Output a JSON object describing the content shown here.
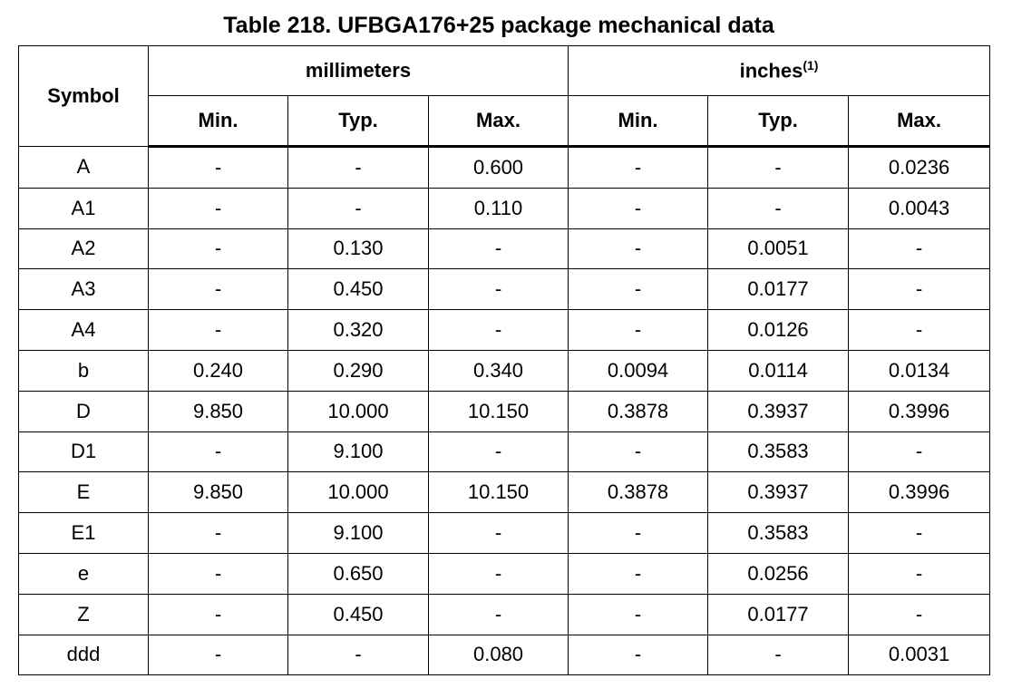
{
  "title": "Table 218. UFBGA176+25 package mechanical data",
  "table": {
    "header": {
      "symbol": "Symbol",
      "groups": [
        {
          "label": "millimeters"
        },
        {
          "label": "inches",
          "note": "(1)"
        }
      ],
      "columns": [
        "Min.",
        "Typ.",
        "Max.",
        "Min.",
        "Typ.",
        "Max."
      ]
    },
    "rows": [
      [
        "A",
        "-",
        "-",
        "0.600",
        "-",
        "-",
        "0.0236"
      ],
      [
        "A1",
        "-",
        "-",
        "0.110",
        "-",
        "-",
        "0.0043"
      ],
      [
        "A2",
        "-",
        "0.130",
        "-",
        "-",
        "0.0051",
        "-"
      ],
      [
        "A3",
        "-",
        "0.450",
        "-",
        "-",
        "0.0177",
        "-"
      ],
      [
        "A4",
        "-",
        "0.320",
        "-",
        "-",
        "0.0126",
        "-"
      ],
      [
        "b",
        "0.240",
        "0.290",
        "0.340",
        "0.0094",
        "0.0114",
        "0.0134"
      ],
      [
        "D",
        "9.850",
        "10.000",
        "10.150",
        "0.3878",
        "0.3937",
        "0.3996"
      ],
      [
        "D1",
        "-",
        "9.100",
        "-",
        "-",
        "0.3583",
        "-"
      ],
      [
        "E",
        "9.850",
        "10.000",
        "10.150",
        "0.3878",
        "0.3937",
        "0.3996"
      ],
      [
        "E1",
        "-",
        "9.100",
        "-",
        "-",
        "0.3583",
        "-"
      ],
      [
        "e",
        "-",
        "0.650",
        "-",
        "-",
        "0.0256",
        "-"
      ],
      [
        "Z",
        "-",
        "0.450",
        "-",
        "-",
        "0.0177",
        "-"
      ],
      [
        "ddd",
        "-",
        "-",
        "0.080",
        "-",
        "-",
        "0.0031"
      ]
    ]
  }
}
